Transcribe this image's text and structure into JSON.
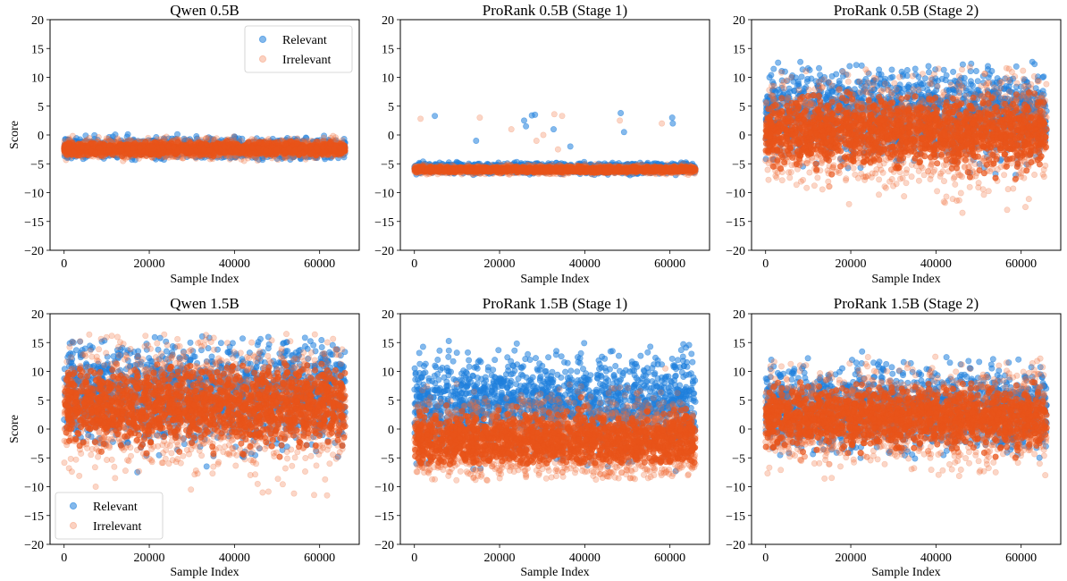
{
  "colors": {
    "relevant": "#1f7fdc",
    "irrelevant": "#f26a36",
    "irrelevant_dense": "#e8541a"
  },
  "chart_data": [
    {
      "type": "scatter",
      "title": "Qwen 0.5B",
      "xlabel": "Sample Index",
      "ylabel": "Score",
      "xlim": [
        -3300,
        69300
      ],
      "ylim": [
        -20,
        20
      ],
      "xticks": [
        "0",
        "20000",
        "40000",
        "60000"
      ],
      "yticks": [
        "−20",
        "−15",
        "−10",
        "−5",
        "0",
        "5",
        "10",
        "15",
        "20"
      ],
      "legend": "top-right",
      "series": [
        {
          "name": "Relevant",
          "mean": -2.3,
          "band": [
            -3.6,
            -0.6
          ],
          "extremes": []
        },
        {
          "name": "Irrelevant",
          "mean": -2.4,
          "band": [
            -3.8,
            -0.8
          ],
          "extremes": []
        }
      ]
    },
    {
      "type": "scatter",
      "title": "ProRank 0.5B (Stage 1)",
      "xlabel": "Sample Index",
      "ylabel": "",
      "xlim": [
        -3300,
        69300
      ],
      "ylim": [
        -20,
        20
      ],
      "xticks": [
        "0",
        "20000",
        "40000",
        "60000"
      ],
      "yticks": [
        "−20",
        "−15",
        "−10",
        "−5",
        "0",
        "5",
        "10",
        "15",
        "20"
      ],
      "legend": "none",
      "series": [
        {
          "name": "Relevant",
          "mean": -5.8,
          "band": [
            -6.6,
            -5.0
          ],
          "extremes": [
            3.8,
            3.5,
            3.4,
            3.3,
            3.0,
            2.5,
            2.0,
            1.5,
            1.0,
            0.5,
            -1.0,
            -2.0
          ]
        },
        {
          "name": "Irrelevant",
          "mean": -6.0,
          "band": [
            -6.6,
            -5.3
          ],
          "extremes": [
            3.6,
            3.3,
            3.0,
            2.8,
            2.5,
            2.0,
            1.0,
            0.0,
            -1.0,
            -2.5
          ]
        }
      ]
    },
    {
      "type": "scatter",
      "title": "ProRank 0.5B (Stage 2)",
      "xlabel": "Sample Index",
      "ylabel": "",
      "xlim": [
        -3300,
        69300
      ],
      "ylim": [
        -20,
        20
      ],
      "xticks": [
        "0",
        "20000",
        "40000",
        "60000"
      ],
      "yticks": [
        "−20",
        "−15",
        "−10",
        "−5",
        "0",
        "5",
        "10",
        "15",
        "20"
      ],
      "legend": "none",
      "series": [
        {
          "name": "Relevant",
          "mean": 3.5,
          "band": [
            -4.0,
            9.5
          ],
          "extremes": [
            11.0,
            10.5,
            10.2,
            10.0
          ]
        },
        {
          "name": "Irrelevant",
          "mean": 0.5,
          "band": [
            -9.5,
            8.0
          ],
          "extremes": [
            -13.5,
            -13.0,
            -12.5,
            -12.0
          ]
        }
      ]
    },
    {
      "type": "scatter",
      "title": "Qwen 1.5B",
      "xlabel": "Sample Index",
      "ylabel": "Score",
      "xlim": [
        -3300,
        69300
      ],
      "ylim": [
        -20,
        20
      ],
      "xticks": [
        "0",
        "20000",
        "40000",
        "60000"
      ],
      "yticks": [
        "−20",
        "−15",
        "−10",
        "−5",
        "0",
        "5",
        "10",
        "15",
        "20"
      ],
      "legend": "bottom-left",
      "series": [
        {
          "name": "Relevant",
          "mean": 6.0,
          "band": [
            -3.0,
            12.5
          ],
          "extremes": [
            14.0,
            13.8,
            13.5,
            -7.5,
            -6.5
          ]
        },
        {
          "name": "Irrelevant",
          "mean": 4.0,
          "band": [
            -8.5,
            11.5
          ],
          "extremes": [
            -11.5,
            -11.0,
            -10.5,
            -10.0
          ]
        }
      ]
    },
    {
      "type": "scatter",
      "title": "ProRank 1.5B (Stage 1)",
      "xlabel": "Sample Index",
      "ylabel": "",
      "xlim": [
        -3300,
        69300
      ],
      "ylim": [
        -20,
        20
      ],
      "xticks": [
        "0",
        "20000",
        "40000",
        "60000"
      ],
      "yticks": [
        "−20",
        "−15",
        "−10",
        "−5",
        "0",
        "5",
        "10",
        "15",
        "20"
      ],
      "legend": "none",
      "series": [
        {
          "name": "Relevant",
          "mean": 4.0,
          "band": [
            -4.0,
            11.5
          ],
          "extremes": [
            12.5,
            12.0
          ]
        },
        {
          "name": "Irrelevant",
          "mean": -2.0,
          "band": [
            -5.5,
            8.5
          ],
          "extremes": [
            -5.8,
            -5.5
          ]
        }
      ]
    },
    {
      "type": "scatter",
      "title": "ProRank 1.5B (Stage 2)",
      "xlabel": "Sample Index",
      "ylabel": "",
      "xlim": [
        -3300,
        69300
      ],
      "ylim": [
        -20,
        20
      ],
      "xticks": [
        "0",
        "20000",
        "40000",
        "60000"
      ],
      "yticks": [
        "−20",
        "−15",
        "−10",
        "−5",
        "0",
        "5",
        "10",
        "15",
        "20"
      ],
      "legend": "none",
      "series": [
        {
          "name": "Relevant",
          "mean": 3.5,
          "band": [
            -2.0,
            10.5
          ],
          "extremes": [
            11.8,
            11.5
          ]
        },
        {
          "name": "Irrelevant",
          "mean": 2.0,
          "band": [
            -6.0,
            9.0
          ],
          "extremes": [
            -8.0,
            -7.5,
            -7.0
          ]
        }
      ]
    }
  ]
}
